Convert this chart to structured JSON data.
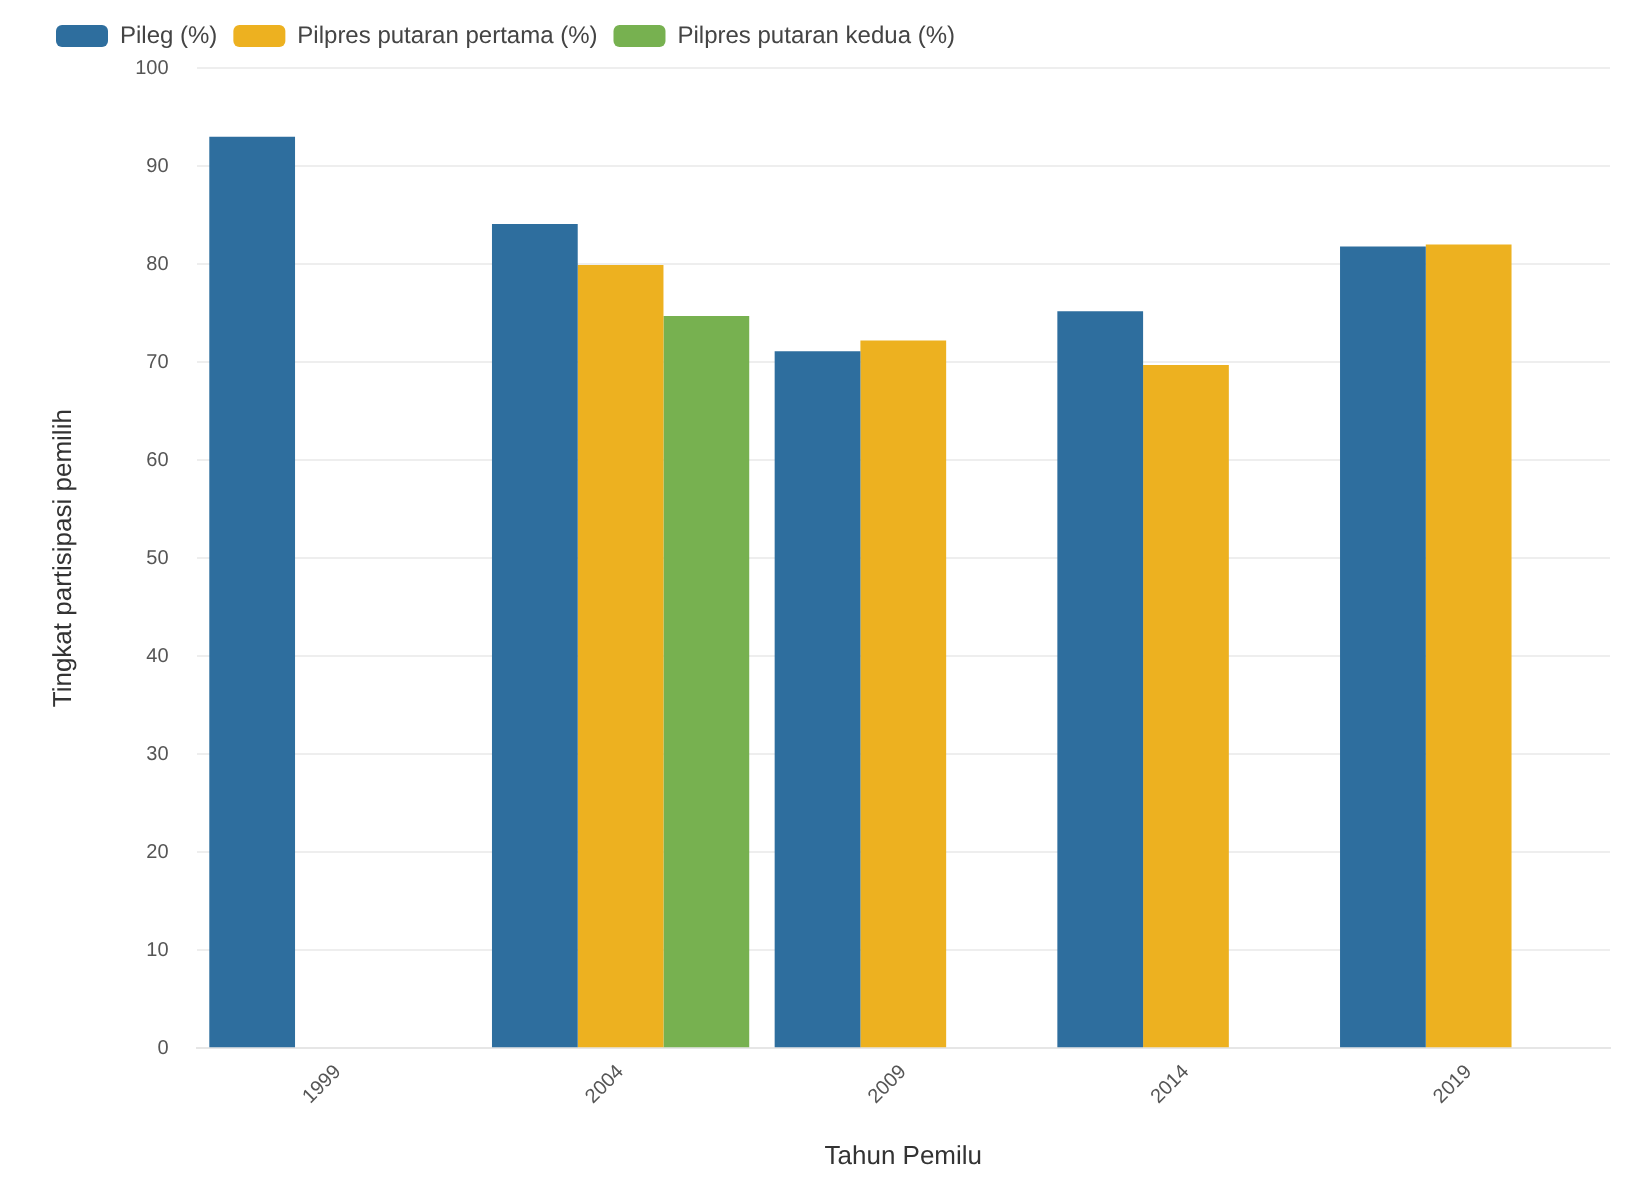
{
  "chart_data": {
    "type": "bar",
    "xlabel": "Tahun Pemilu",
    "ylabel": "Tingkat partisipasi pemilih",
    "categories": [
      "1999",
      "2004",
      "2009",
      "2014",
      "2019"
    ],
    "series": [
      {
        "name": "Pileg (%)",
        "color": "#2e6e9e",
        "values": [
          93.0,
          84.1,
          71.1,
          75.2,
          81.8
        ]
      },
      {
        "name": "Pilpres putaran pertama (%)",
        "color": "#edb120",
        "values": [
          null,
          79.9,
          72.2,
          69.7,
          82.0
        ]
      },
      {
        "name": "Pilpres putaran kedua (%)",
        "color": "#77b150",
        "values": [
          null,
          74.7,
          null,
          null,
          null
        ]
      }
    ],
    "ylim": [
      0,
      100
    ],
    "yticks": [
      0,
      10,
      20,
      30,
      40,
      50,
      60,
      70,
      80,
      90,
      100
    ],
    "grid": "y",
    "legend": "top left"
  }
}
